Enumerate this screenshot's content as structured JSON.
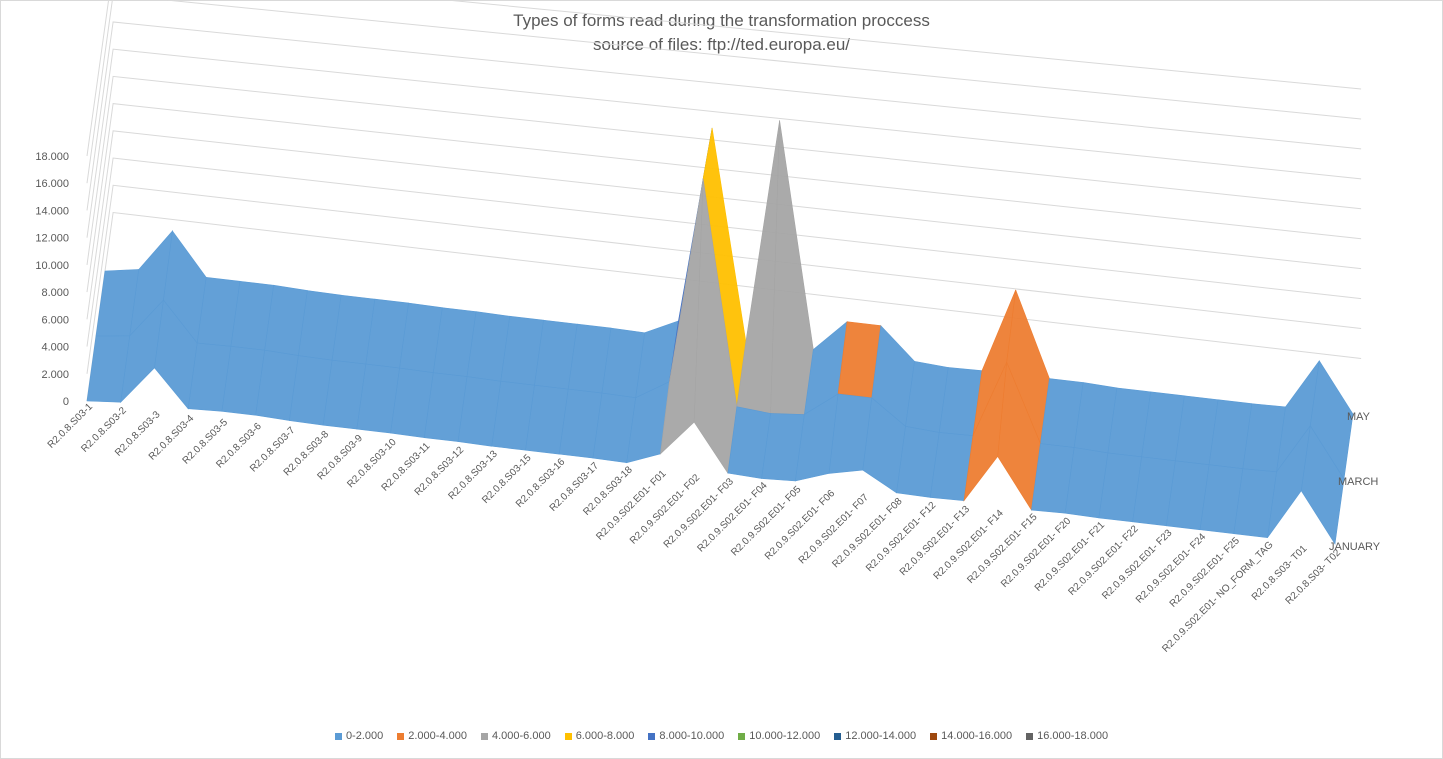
{
  "chart_data": {
    "type": "surface-3d",
    "title": "Types of forms read  during the transformation proccess",
    "subtitle": "source of files: ftp://ted.europa.eu/",
    "categories": [
      "R2.0.8.S03-1",
      "R2.0.8.S03-2",
      "R2.0.8.S03-3",
      "R2.0.8.S03-4",
      "R2.0.8.S03-5",
      "R2.0.8.S03-6",
      "R2.0.8.S03-7",
      "R2.0.8.S03-8",
      "R2.0.8.S03-9",
      "R2.0.8.S03-10",
      "R2.0.8.S03-11",
      "R2.0.8.S03-12",
      "R2.0.8.S03-13",
      "R2.0.8.S03-15",
      "R2.0.8.S03-16",
      "R2.0.8.S03-17",
      "R2.0.8.S03-18",
      "R2.0.9.S02.E01- F01",
      "R2.0.9.S02.E01- F02",
      "R2.0.9.S02.E01- F03",
      "R2.0.9.S02.E01- F04",
      "R2.0.9.S02.E01- F05",
      "R2.0.9.S02.E01- F06",
      "R2.0.9.S02.E01- F07",
      "R2.0.9.S02.E01- F08",
      "R2.0.9.S02.E01- F12",
      "R2.0.9.S02.E01- F13",
      "R2.0.9.S02.E01- F14",
      "R2.0.9.S02.E01- F15",
      "R2.0.9.S02.E01- F20",
      "R2.0.9.S02.E01- F21",
      "R2.0.9.S02.E01- F22",
      "R2.0.9.S02.E01- F23",
      "R2.0.9.S02.E01- F24",
      "R2.0.9.S02.E01- F25",
      "R2.0.9.S02.E01- NO_FORM_TAG",
      "R2.0.8.S03- T01",
      "R2.0.8.S03- T02"
    ],
    "series": [
      {
        "name": "JANUARY",
        "values": [
          0,
          200,
          3000,
          300,
          400,
          400,
          300,
          250,
          250,
          250,
          200,
          200,
          150,
          150,
          150,
          150,
          100,
          1000,
          3500,
          200,
          100,
          200,
          1000,
          1500,
          200,
          150,
          200,
          3500,
          100,
          150,
          100,
          100,
          100,
          100,
          100,
          100,
          3500,
          200
        ]
      },
      {
        "name": "MARCH",
        "values": [
          0,
          300,
          3200,
          350,
          400,
          400,
          300,
          250,
          250,
          250,
          200,
          200,
          150,
          150,
          150,
          150,
          100,
          1500,
          16000,
          300,
          100,
          300,
          2000,
          2000,
          300,
          150,
          200,
          5500,
          200,
          200,
          100,
          100,
          100,
          100,
          100,
          150,
          3500,
          200
        ]
      },
      {
        "name": "MAY",
        "values": [
          0,
          400,
          3500,
          400,
          400,
          400,
          300,
          250,
          250,
          250,
          200,
          200,
          150,
          150,
          150,
          150,
          100,
          1200,
          15000,
          300,
          16000,
          300,
          2500,
          2500,
          300,
          150,
          200,
          6000,
          200,
          200,
          100,
          100,
          100,
          100,
          100,
          150,
          3500,
          200
        ]
      }
    ],
    "yticks": [
      "0",
      "2.000",
      "4.000",
      "6.000",
      "8.000",
      "10.000",
      "12.000",
      "14.000",
      "16.000",
      "18.000"
    ],
    "ylim": [
      0,
      18000
    ],
    "grid": true,
    "legend_position": "bottom",
    "legend": [
      {
        "label": "0-2.000",
        "color": "#5B9BD5"
      },
      {
        "label": "2.000-4.000",
        "color": "#ED7D31"
      },
      {
        "label": "4.000-6.000",
        "color": "#A5A5A5"
      },
      {
        "label": "6.000-8.000",
        "color": "#FFC000"
      },
      {
        "label": "8.000-10.000",
        "color": "#4472C4"
      },
      {
        "label": "10.000-12.000",
        "color": "#70AD47"
      },
      {
        "label": "12.000-14.000",
        "color": "#255E91"
      },
      {
        "label": "14.000-16.000",
        "color": "#9E480E"
      },
      {
        "label": "16.000-18.000",
        "color": "#636363"
      }
    ]
  }
}
